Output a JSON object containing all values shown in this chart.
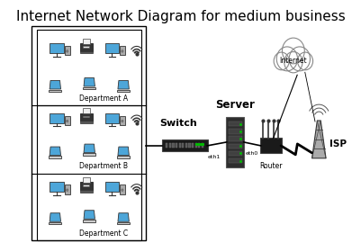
{
  "title": "Internet Network Diagram for medium business",
  "title_fontsize": 11,
  "bg_color": "#ffffff",
  "dept_labels": [
    "Department A",
    "Department B",
    "Department C"
  ],
  "node_labels": [
    "Switch",
    "Server",
    "Router",
    "ISP",
    "Internet"
  ],
  "connection_labels": [
    "eth1",
    "eth0"
  ],
  "monitor_color": "#4da6d9",
  "laptop_color": "#4da6d9",
  "switch_color": "#1a1a1a",
  "server_color": "#3a3a3a",
  "router_color": "#1a1a1a",
  "line_color": "#000000"
}
